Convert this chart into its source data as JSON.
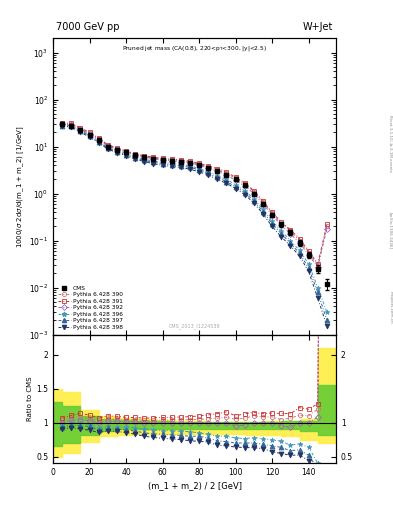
{
  "x_data": [
    5,
    10,
    15,
    20,
    25,
    30,
    35,
    40,
    45,
    50,
    55,
    60,
    65,
    70,
    75,
    80,
    85,
    90,
    95,
    100,
    105,
    110,
    115,
    120,
    125,
    130,
    135,
    140,
    145,
    150
  ],
  "cms_y": [
    30,
    28,
    22,
    18,
    14,
    10,
    8.5,
    7.5,
    6.5,
    6.0,
    5.5,
    5.2,
    5.0,
    4.8,
    4.5,
    4.0,
    3.5,
    3.0,
    2.5,
    2.0,
    1.5,
    1.0,
    0.6,
    0.35,
    0.22,
    0.15,
    0.09,
    0.05,
    0.025,
    0.012
  ],
  "cms_yerr": [
    3,
    2.5,
    2,
    1.5,
    1.2,
    0.9,
    0.7,
    0.6,
    0.5,
    0.45,
    0.4,
    0.38,
    0.35,
    0.33,
    0.3,
    0.28,
    0.25,
    0.22,
    0.18,
    0.15,
    0.12,
    0.09,
    0.06,
    0.04,
    0.025,
    0.018,
    0.012,
    0.008,
    0.005,
    0.003
  ],
  "pythia_390_y": [
    31,
    30,
    24,
    19,
    14.5,
    10.5,
    9.0,
    7.8,
    6.8,
    6.2,
    5.7,
    5.4,
    5.2,
    5.0,
    4.7,
    4.2,
    3.7,
    3.2,
    2.7,
    2.1,
    1.6,
    1.1,
    0.65,
    0.38,
    0.23,
    0.16,
    0.1,
    0.055,
    0.03,
    0.2
  ],
  "pythia_391_y": [
    32,
    31,
    25,
    20,
    15,
    11,
    9.3,
    8.1,
    7.0,
    6.4,
    5.9,
    5.6,
    5.4,
    5.2,
    4.9,
    4.4,
    3.9,
    3.4,
    2.9,
    2.2,
    1.7,
    1.15,
    0.68,
    0.4,
    0.25,
    0.17,
    0.11,
    0.06,
    0.032,
    0.22
  ],
  "pythia_392_y": [
    30,
    29,
    23,
    18.5,
    14,
    10.2,
    8.7,
    7.6,
    6.6,
    6.0,
    5.5,
    5.2,
    5.0,
    4.8,
    4.5,
    4.0,
    3.5,
    3.0,
    2.5,
    1.9,
    1.45,
    1.0,
    0.6,
    0.35,
    0.21,
    0.14,
    0.09,
    0.05,
    0.027,
    0.18
  ],
  "pythia_396_y": [
    29,
    28,
    22,
    17.5,
    13,
    9.5,
    8.0,
    7.0,
    6.0,
    5.4,
    4.9,
    4.6,
    4.4,
    4.2,
    3.9,
    3.4,
    2.9,
    2.4,
    2.0,
    1.55,
    1.15,
    0.78,
    0.46,
    0.26,
    0.16,
    0.1,
    0.062,
    0.032,
    0.01,
    0.003
  ],
  "pythia_397_y": [
    28,
    27,
    21,
    17,
    12.5,
    9.2,
    7.7,
    6.7,
    5.7,
    5.1,
    4.6,
    4.3,
    4.1,
    3.9,
    3.6,
    3.2,
    2.7,
    2.2,
    1.8,
    1.4,
    1.05,
    0.7,
    0.41,
    0.23,
    0.14,
    0.088,
    0.054,
    0.026,
    0.008,
    0.002
  ],
  "pythia_398_y": [
    27,
    26,
    20,
    16,
    12,
    8.8,
    7.4,
    6.4,
    5.4,
    4.8,
    4.3,
    4.0,
    3.8,
    3.6,
    3.3,
    2.9,
    2.5,
    2.0,
    1.65,
    1.28,
    0.95,
    0.63,
    0.37,
    0.2,
    0.12,
    0.078,
    0.047,
    0.022,
    0.006,
    0.0015
  ],
  "colors_390": "#cc7777",
  "colors_391": "#cc3333",
  "colors_392": "#9966bb",
  "colors_396": "#4499bb",
  "colors_397": "#336699",
  "colors_398": "#223366",
  "xlim": [
    0,
    155
  ],
  "ylim_main": [
    0.001,
    2000
  ],
  "ylim_ratio": [
    0.4,
    2.3
  ],
  "ratio_yticks": [
    0.5,
    1.0,
    1.5,
    2.0
  ],
  "band_yellow_x": [
    0,
    5,
    15,
    25,
    35,
    45,
    55,
    65,
    75,
    85,
    95,
    105,
    115,
    125,
    135,
    145,
    155
  ],
  "band_yellow_hi": [
    1.5,
    1.45,
    1.18,
    1.1,
    1.07,
    1.05,
    1.04,
    1.03,
    1.02,
    1.01,
    1.01,
    1.01,
    1.02,
    1.03,
    1.05,
    2.1,
    2.1
  ],
  "band_yellow_lo": [
    0.5,
    0.55,
    0.72,
    0.8,
    0.82,
    0.83,
    0.83,
    0.83,
    0.83,
    0.83,
    0.83,
    0.82,
    0.82,
    0.8,
    0.75,
    0.7,
    0.7
  ],
  "band_green_hi": [
    1.3,
    1.25,
    1.1,
    1.05,
    1.04,
    1.03,
    1.02,
    1.01,
    1.01,
    1.01,
    1.01,
    1.01,
    1.01,
    1.02,
    1.03,
    1.55,
    1.55
  ],
  "band_green_lo": [
    0.65,
    0.7,
    0.82,
    0.88,
    0.9,
    0.91,
    0.91,
    0.91,
    0.91,
    0.91,
    0.91,
    0.91,
    0.91,
    0.9,
    0.88,
    0.82,
    0.82
  ]
}
